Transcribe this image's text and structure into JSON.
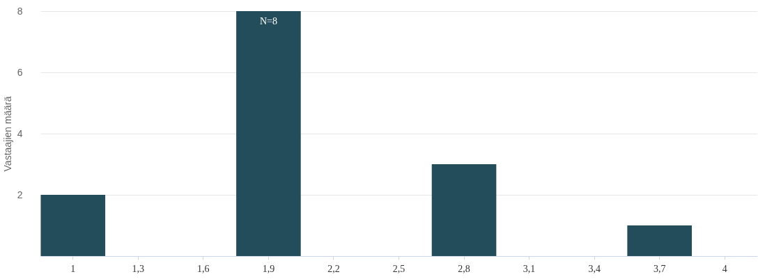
{
  "chart_data": {
    "type": "bar",
    "ylabel": "Vastaajien määrä",
    "categories": [
      "1",
      "1,3",
      "1,6",
      "1,9",
      "2,2",
      "2,5",
      "2,8",
      "3,1",
      "3,4",
      "3,7",
      "4"
    ],
    "values": [
      2,
      0,
      0,
      8,
      0,
      0,
      3,
      0,
      0,
      1,
      0
    ],
    "color": "#234d5a",
    "ylim": [
      0,
      8
    ],
    "yticks": [
      2,
      4,
      6,
      8
    ],
    "grid": "y",
    "annotations": [
      {
        "text": "N=8",
        "x": "1,9",
        "y": 8
      }
    ]
  }
}
